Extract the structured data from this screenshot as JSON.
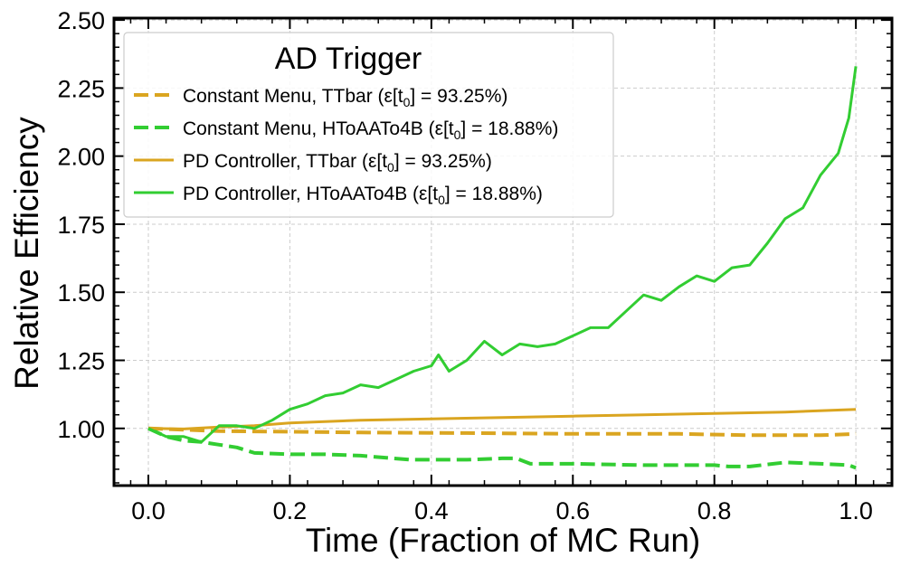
{
  "chart_data": {
    "type": "line",
    "title": "",
    "xlabel": "Time (Fraction of MC Run)",
    "ylabel": "Relative Efficiency",
    "xlim": [
      -0.0486,
      1.051
    ],
    "ylim": [
      0.79,
      2.507
    ],
    "xticks": [
      "0.0",
      "0.2",
      "0.4",
      "0.6",
      "0.8",
      "1.0"
    ],
    "yticks": [
      "1.00",
      "1.25",
      "1.50",
      "1.75",
      "2.00",
      "2.25",
      "2.50"
    ],
    "grid": true,
    "legend": {
      "title": "AD Trigger",
      "placement": "top-left"
    },
    "series": [
      {
        "name": "Constant Menu, TTbar (ε[t0] = 93.25%)",
        "name_prefix": "Constant Menu, TTbar (ε[t",
        "name_sub": "0",
        "name_suffix": "] = 93.25%)",
        "color": "#DAA520",
        "style": "dashed",
        "x": [
          0,
          0.05,
          0.1,
          0.2,
          0.3,
          0.45,
          0.6,
          0.75,
          0.85,
          0.95,
          1.0
        ],
        "y": [
          1.0,
          0.995,
          0.99,
          0.988,
          0.985,
          0.983,
          0.98,
          0.98,
          0.975,
          0.975,
          0.98
        ]
      },
      {
        "name": "Constant Menu, HToAATo4B (ε[t0] = 18.88%)",
        "name_prefix": "Constant Menu, HToAATo4B (ε[t",
        "name_sub": "0",
        "name_suffix": "] = 18.88%)",
        "color": "#32CD32",
        "style": "dashed",
        "x": [
          0,
          0.025,
          0.05,
          0.075,
          0.1,
          0.125,
          0.15,
          0.2,
          0.25,
          0.3,
          0.37,
          0.45,
          0.5,
          0.52,
          0.54,
          0.6,
          0.7,
          0.8,
          0.82,
          0.85,
          0.9,
          0.95,
          0.99,
          1.0
        ],
        "y": [
          1.0,
          0.97,
          0.955,
          0.95,
          0.94,
          0.93,
          0.91,
          0.905,
          0.905,
          0.9,
          0.885,
          0.885,
          0.89,
          0.89,
          0.87,
          0.87,
          0.865,
          0.865,
          0.86,
          0.86,
          0.875,
          0.87,
          0.865,
          0.855
        ]
      },
      {
        "name": "PD Controller, TTbar (ε[t0] = 93.25%)",
        "name_prefix": "PD Controller, TTbar (ε[t",
        "name_sub": "0",
        "name_suffix": "] = 93.25%)",
        "color": "#DAA520",
        "style": "solid",
        "x": [
          0,
          0.05,
          0.1,
          0.15,
          0.2,
          0.3,
          0.4,
          0.5,
          0.6,
          0.7,
          0.8,
          0.9,
          1.0
        ],
        "y": [
          1.0,
          0.998,
          1.005,
          1.01,
          1.02,
          1.03,
          1.035,
          1.04,
          1.045,
          1.05,
          1.055,
          1.06,
          1.07
        ]
      },
      {
        "name": "PD Controller, HToAATo4B (ε[t0] = 18.88%)",
        "name_prefix": "PD Controller, HToAATo4B (ε[t",
        "name_sub": "0",
        "name_suffix": "] = 18.88%)",
        "color": "#32CD32",
        "style": "solid",
        "x": [
          0,
          0.025,
          0.05,
          0.075,
          0.1,
          0.125,
          0.15,
          0.175,
          0.2,
          0.225,
          0.25,
          0.275,
          0.3,
          0.325,
          0.35,
          0.375,
          0.4,
          0.41,
          0.425,
          0.45,
          0.475,
          0.5,
          0.525,
          0.55,
          0.575,
          0.6,
          0.625,
          0.65,
          0.675,
          0.7,
          0.725,
          0.75,
          0.775,
          0.8,
          0.825,
          0.85,
          0.875,
          0.9,
          0.925,
          0.95,
          0.975,
          0.99,
          1.0
        ],
        "y": [
          1.0,
          0.97,
          0.97,
          0.95,
          1.01,
          1.01,
          1.0,
          1.03,
          1.07,
          1.09,
          1.12,
          1.13,
          1.16,
          1.15,
          1.18,
          1.21,
          1.23,
          1.27,
          1.21,
          1.25,
          1.32,
          1.27,
          1.31,
          1.3,
          1.31,
          1.34,
          1.37,
          1.37,
          1.43,
          1.49,
          1.47,
          1.52,
          1.56,
          1.54,
          1.59,
          1.6,
          1.68,
          1.77,
          1.81,
          1.93,
          2.01,
          2.14,
          2.33
        ]
      }
    ]
  }
}
